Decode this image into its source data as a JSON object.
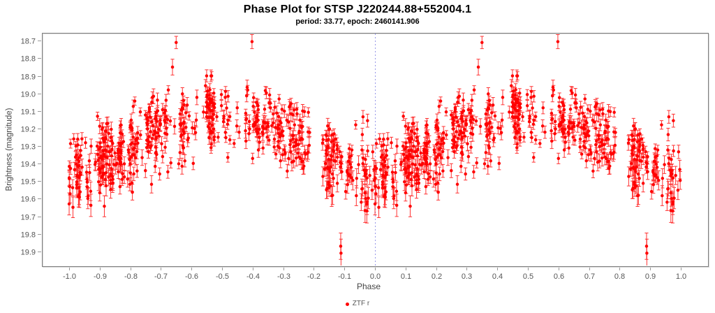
{
  "chart_data": {
    "type": "scatter",
    "title": "Phase Plot for STSP J220244.88+552004.1",
    "subtitle": "period: 33.77, epoch: 2460141.906",
    "xlabel": "Phase",
    "ylabel": "Brightness (magnitude)",
    "grid": false,
    "legend_position": "bottom-center",
    "x_tick_labels": [
      "-1.0",
      "-0.9",
      "-0.8",
      "-0.7",
      "-0.6",
      "-0.5",
      "-0.4",
      "-0.3",
      "-0.2",
      "-0.1",
      "0.0",
      "0.1",
      "0.2",
      "0.3",
      "0.4",
      "0.5",
      "0.6",
      "0.7",
      "0.8",
      "0.9",
      "1.0"
    ],
    "y_tick_labels": [
      "18.7",
      "18.8",
      "18.9",
      "19.0",
      "19.1",
      "19.2",
      "19.3",
      "19.4",
      "19.5",
      "19.6",
      "19.7",
      "19.8",
      "19.9"
    ],
    "xlim": [
      -1.089,
      1.089
    ],
    "ylim": [
      19.984,
      18.655
    ],
    "y_axis_inverted": true,
    "zero_phase_line": {
      "phase": 0.0,
      "color": "#9898e8",
      "dash": [
        2,
        3
      ]
    },
    "colors": {
      "axis": "#808080",
      "axis_shadow": "#d8d8d8",
      "ticks": "#999999",
      "tick_labels": "#555555",
      "axis_labels": "#444444",
      "title": "#000000",
      "points": "#ff0000",
      "error_bars": "rgba(255,0,0,0.8)",
      "legend_text": "#555555"
    },
    "series": [
      {
        "name": "ZTF r",
        "marker": "circle",
        "color": "#ff0000",
        "folding": "each observation plotted at phase and phase-1",
        "model": {
          "seed": 220244,
          "n_clusters": 112,
          "max_per_cluster": 11,
          "cluster_phase_sigma": 0.006,
          "cluster_mag_sigma": 0.03,
          "mean_mag": 19.28,
          "cos1_amp": 0.15,
          "cos2_amp": 0.03,
          "scatter_sigma": 0.1,
          "mag_min": 18.9,
          "mag_max": 19.8,
          "err_base": 0.022,
          "err_rand": 0.022,
          "err_faint_knee": 19.3,
          "err_faint_slope": 0.07
        },
        "outliers": [
          {
            "phase": 0.35,
            "mag": 18.71,
            "err": 0.035
          },
          {
            "phase": 0.598,
            "mag": 18.705,
            "err": 0.04
          },
          {
            "phase": 0.338,
            "mag": 18.85,
            "err": 0.045
          },
          {
            "phase": 0.888,
            "mag": 19.87,
            "err": 0.075
          },
          {
            "phase": 0.889,
            "mag": 19.91,
            "err": 0.08
          }
        ]
      }
    ]
  }
}
